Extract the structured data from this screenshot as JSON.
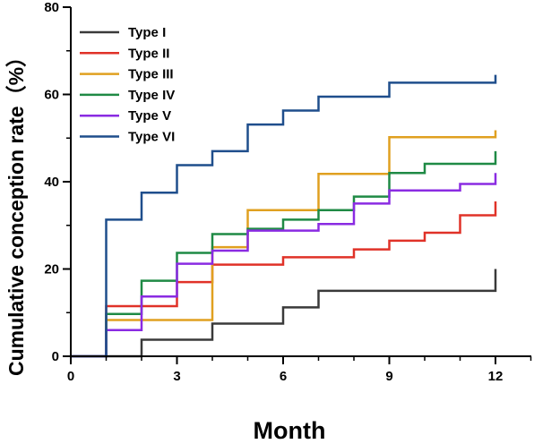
{
  "chart_data": {
    "type": "line",
    "step": true,
    "xlabel": "Month",
    "ylabel": "Cumulative conception rate（%）",
    "xlim": [
      0,
      12
    ],
    "ylim": [
      0,
      80
    ],
    "xticks": [
      0,
      3,
      6,
      9,
      12
    ],
    "yticks": [
      0,
      20,
      40,
      60,
      80
    ],
    "grid": false,
    "legend_position": "top-left",
    "series": [
      {
        "name": "Type I",
        "color": "#3a3a3a",
        "points": [
          [
            0,
            0
          ],
          [
            2,
            3.8
          ],
          [
            4,
            7.5
          ],
          [
            6,
            11.2
          ],
          [
            7,
            15
          ],
          [
            12,
            15
          ]
        ],
        "end_tick": 20
      },
      {
        "name": "Type II",
        "color": "#e03228",
        "points": [
          [
            0,
            0
          ],
          [
            1,
            11.5
          ],
          [
            3,
            17
          ],
          [
            4,
            21
          ],
          [
            6,
            22.7
          ],
          [
            8,
            24.5
          ],
          [
            9,
            26.5
          ],
          [
            10,
            28.3
          ],
          [
            11,
            32.3
          ],
          [
            12,
            32.3
          ]
        ],
        "end_tick": 35.5
      },
      {
        "name": "Type III",
        "color": "#e0a020",
        "points": [
          [
            0,
            0
          ],
          [
            1,
            8.3
          ],
          [
            4,
            25
          ],
          [
            5,
            33.5
          ],
          [
            7,
            41.8
          ],
          [
            9,
            50.2
          ],
          [
            12,
            50.2
          ]
        ],
        "end_tick": 51.8
      },
      {
        "name": "Type IV",
        "color": "#1f8a45",
        "points": [
          [
            0,
            0
          ],
          [
            1,
            9.7
          ],
          [
            2,
            17.3
          ],
          [
            3,
            23.7
          ],
          [
            4,
            28
          ],
          [
            5,
            29.2
          ],
          [
            6,
            31.3
          ],
          [
            7,
            33.5
          ],
          [
            8,
            36.6
          ],
          [
            9,
            42
          ],
          [
            10,
            44.1
          ],
          [
            12,
            44.1
          ]
        ],
        "end_tick": 47
      },
      {
        "name": "Type V",
        "color": "#8a2be2",
        "points": [
          [
            0,
            0
          ],
          [
            1,
            6
          ],
          [
            2,
            13.7
          ],
          [
            3,
            21.2
          ],
          [
            4,
            24.2
          ],
          [
            5,
            28.8
          ],
          [
            7,
            30.3
          ],
          [
            8,
            35
          ],
          [
            9,
            38
          ],
          [
            11,
            39.5
          ],
          [
            12,
            39.5
          ]
        ],
        "end_tick": 42
      },
      {
        "name": "Type VI",
        "color": "#1f4e8c",
        "points": [
          [
            0,
            0
          ],
          [
            1,
            31.3
          ],
          [
            2,
            37.5
          ],
          [
            3,
            43.8
          ],
          [
            4,
            47
          ],
          [
            5,
            53.1
          ],
          [
            6,
            56.3
          ],
          [
            7,
            59.5
          ],
          [
            9,
            62.7
          ],
          [
            12,
            62.7
          ]
        ],
        "end_tick": 64.5
      }
    ]
  }
}
